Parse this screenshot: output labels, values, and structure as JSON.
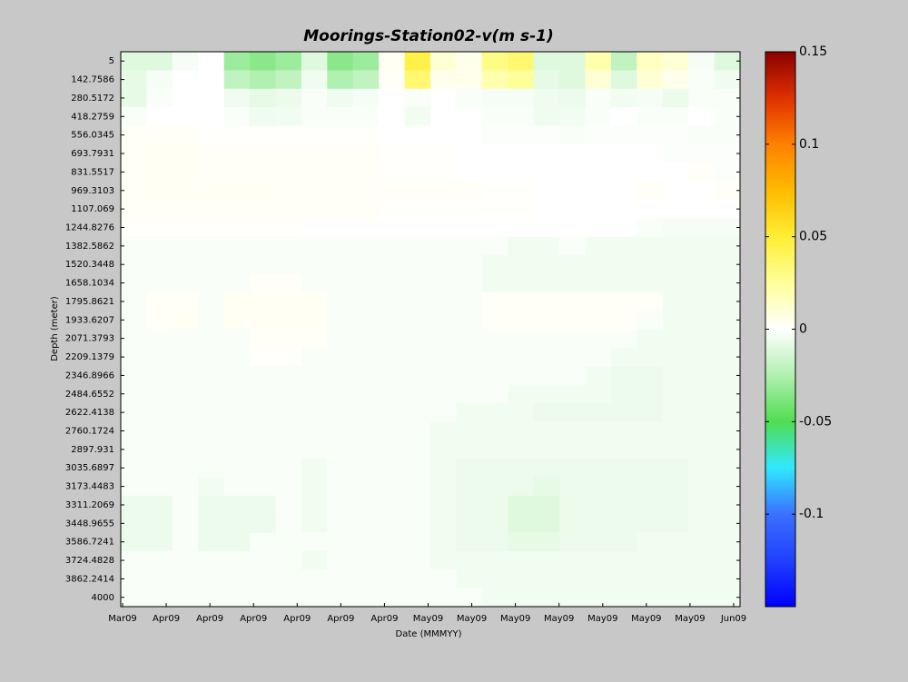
{
  "chart_data": {
    "type": "heatmap",
    "title": "Moorings-Station02-v(m s-1)",
    "x_label": "Date (MMMYY)",
    "y_label": "Depth (meter)",
    "xtick_labels": [
      "Mar09",
      "Apr09",
      "Apr09",
      "Apr09",
      "Apr09",
      "Apr09",
      "Apr09",
      "May09",
      "May09",
      "May09",
      "May09",
      "May09",
      "May09",
      "May09",
      "Jun09"
    ],
    "ylim": [
      -64,
      4069
    ],
    "y_inverted": true,
    "yticks": [
      5,
      142.7586,
      280.5172,
      418.2759,
      556.0345,
      693.7931,
      831.5517,
      969.3103,
      1107.069,
      1244.8276,
      1382.5862,
      1520.3448,
      1658.1034,
      1795.8621,
      1933.6207,
      2071.3793,
      2209.1379,
      2346.8966,
      2484.6552,
      2622.4138,
      2760.1724,
      2897.931,
      3035.6897,
      3173.4483,
      3311.2069,
      3448.9655,
      3586.7241,
      3724.4828,
      3862.2414,
      4000
    ],
    "clim": [
      -0.15,
      0.15
    ],
    "cticks": [
      0.15,
      0.1,
      0.05,
      0,
      -0.05,
      -0.1
    ],
    "colormap": [
      "#0000ff",
      "#2040ff",
      "#3a70ff",
      "#30e8ff",
      "#50dd50",
      "#b0f0b0",
      "#ffffff",
      "#ffff99",
      "#ffee33",
      "#ffbb00",
      "#ff8000",
      "#e03000",
      "#8b0000"
    ],
    "values": [
      [
        -0.01,
        -0.01,
        -0.003,
        0,
        -0.03,
        -0.035,
        -0.03,
        -0.01,
        -0.035,
        -0.03,
        0.003,
        0.045,
        0.01,
        0.005,
        0.03,
        0.035,
        -0.01,
        -0.01,
        0.02,
        -0.02,
        0.015,
        0.01,
        -0.003,
        -0.01
      ],
      [
        -0.008,
        -0.003,
        0,
        0,
        -0.02,
        -0.025,
        -0.02,
        -0.005,
        -0.025,
        -0.02,
        0.002,
        0.035,
        0.005,
        0.005,
        0.02,
        0.025,
        -0.008,
        -0.01,
        0.01,
        -0.01,
        0.01,
        0.005,
        -0.002,
        -0.005
      ],
      [
        -0.008,
        -0.002,
        0,
        0,
        -0.005,
        -0.008,
        -0.006,
        -0.002,
        -0.005,
        -0.003,
        0,
        -0.002,
        0,
        -0.002,
        -0.003,
        -0.003,
        -0.005,
        -0.006,
        -0.002,
        -0.004,
        -0.003,
        -0.006,
        -0.002,
        -0.002
      ],
      [
        -0.002,
        0,
        0,
        0,
        -0.002,
        -0.005,
        -0.004,
        -0.002,
        -0.002,
        -0.002,
        0,
        -0.004,
        0,
        0,
        -0.002,
        -0.002,
        -0.005,
        -0.004,
        -0.002,
        0,
        -0.002,
        -0.002,
        0,
        -0.002
      ],
      [
        0.002,
        0.002,
        0.002,
        0.001,
        0.001,
        0.001,
        0.001,
        0.001,
        0.001,
        0.001,
        0,
        0,
        0,
        0,
        -0.001,
        -0.001,
        -0.001,
        -0.002,
        -0.001,
        -0.001,
        -0.001,
        -0.001,
        -0.002,
        -0.002
      ],
      [
        0.002,
        0.003,
        0.003,
        0.002,
        0.002,
        0.002,
        0.002,
        0.002,
        0.002,
        0.002,
        0.001,
        0.001,
        0.001,
        0,
        0,
        0,
        0,
        0,
        0,
        0,
        0,
        -0.001,
        -0.001,
        -0.001
      ],
      [
        0.002,
        0.003,
        0.003,
        0.002,
        0.002,
        0.002,
        0.002,
        0.002,
        0.002,
        0.002,
        0.001,
        0.001,
        0.001,
        0,
        0,
        0,
        0,
        0,
        0,
        0,
        0,
        0,
        0.002,
        -0.001
      ],
      [
        0.002,
        0.003,
        0.003,
        0.003,
        0.003,
        0.003,
        0.002,
        0.002,
        0.002,
        0.002,
        0.002,
        0.002,
        0.002,
        0.002,
        0.001,
        0.001,
        0,
        0,
        0,
        0,
        0.002,
        0,
        0,
        0.002
      ],
      [
        0.002,
        0.002,
        0.002,
        0.002,
        0.002,
        0.002,
        0.002,
        0.002,
        0.002,
        0.002,
        0.001,
        0.001,
        0.001,
        0.001,
        0.001,
        0.001,
        0,
        0,
        0,
        0,
        0,
        0,
        0,
        0
      ],
      [
        0.001,
        0.001,
        0.001,
        0.001,
        0.001,
        0.001,
        0.001,
        0,
        0,
        0,
        0,
        0,
        0,
        0,
        0,
        0,
        0,
        0,
        0,
        0,
        -0.002,
        -0.003,
        -0.003,
        -0.003
      ],
      [
        -0.002,
        -0.002,
        -0.002,
        -0.002,
        -0.002,
        -0.002,
        -0.002,
        -0.002,
        -0.002,
        -0.002,
        -0.002,
        -0.002,
        -0.002,
        -0.002,
        -0.002,
        -0.004,
        -0.004,
        -0.002,
        -0.004,
        -0.004,
        -0.004,
        -0.004,
        -0.004,
        -0.004
      ],
      [
        -0.002,
        -0.002,
        -0.002,
        -0.002,
        -0.002,
        -0.002,
        -0.002,
        -0.002,
        -0.002,
        -0.002,
        -0.002,
        -0.002,
        -0.002,
        -0.002,
        -0.004,
        -0.004,
        -0.004,
        -0.004,
        -0.004,
        -0.004,
        -0.004,
        -0.004,
        -0.004,
        -0.004
      ],
      [
        -0.002,
        -0.002,
        -0.002,
        -0.002,
        -0.002,
        0.002,
        0.002,
        -0.002,
        -0.002,
        -0.002,
        -0.002,
        -0.002,
        -0.002,
        -0.002,
        -0.004,
        -0.004,
        -0.004,
        -0.004,
        -0.004,
        -0.004,
        -0.004,
        -0.004,
        -0.004,
        -0.004
      ],
      [
        -0.002,
        0.002,
        0.002,
        -0.002,
        0.003,
        0.003,
        0.003,
        0.003,
        -0.002,
        -0.002,
        -0.002,
        -0.002,
        -0.002,
        -0.002,
        0.002,
        0.002,
        0.002,
        0.002,
        0.002,
        0.002,
        0.002,
        -0.004,
        -0.004,
        -0.004
      ],
      [
        -0.002,
        0.002,
        0.003,
        -0.002,
        0.003,
        0.003,
        0.003,
        0.003,
        -0.002,
        -0.002,
        -0.002,
        -0.002,
        -0.002,
        -0.002,
        0.002,
        0.002,
        0.002,
        0.002,
        0.002,
        0.002,
        -0.002,
        -0.004,
        -0.004,
        -0.004
      ],
      [
        -0.002,
        -0.002,
        -0.002,
        -0.002,
        -0.002,
        0.002,
        0.002,
        0.002,
        -0.002,
        -0.002,
        -0.002,
        -0.002,
        -0.002,
        -0.002,
        -0.002,
        -0.002,
        -0.002,
        -0.002,
        -0.002,
        -0.002,
        -0.004,
        -0.004,
        -0.004,
        -0.004
      ],
      [
        -0.002,
        -0.002,
        -0.002,
        -0.002,
        -0.002,
        0.001,
        0.001,
        -0.002,
        -0.002,
        -0.002,
        -0.002,
        -0.002,
        -0.002,
        -0.002,
        -0.002,
        -0.002,
        -0.002,
        -0.002,
        -0.002,
        -0.004,
        -0.004,
        -0.004,
        -0.004,
        -0.004
      ],
      [
        -0.002,
        -0.002,
        -0.002,
        -0.002,
        -0.002,
        -0.002,
        -0.002,
        -0.002,
        -0.002,
        -0.002,
        -0.002,
        -0.002,
        -0.002,
        -0.002,
        -0.002,
        -0.002,
        -0.002,
        -0.002,
        -0.004,
        -0.006,
        -0.006,
        -0.004,
        -0.004,
        -0.004
      ],
      [
        -0.002,
        -0.002,
        -0.002,
        -0.002,
        -0.002,
        -0.002,
        -0.002,
        -0.002,
        -0.002,
        -0.002,
        -0.002,
        -0.002,
        -0.002,
        -0.002,
        -0.002,
        -0.004,
        -0.004,
        -0.004,
        -0.004,
        -0.006,
        -0.006,
        -0.004,
        -0.004,
        -0.004
      ],
      [
        -0.002,
        -0.002,
        -0.002,
        -0.002,
        -0.002,
        -0.002,
        -0.002,
        -0.002,
        -0.002,
        -0.002,
        -0.002,
        -0.002,
        -0.002,
        -0.004,
        -0.004,
        -0.004,
        -0.006,
        -0.006,
        -0.006,
        -0.006,
        -0.006,
        -0.004,
        -0.004,
        -0.004
      ],
      [
        -0.002,
        -0.002,
        -0.002,
        -0.002,
        -0.002,
        -0.002,
        -0.002,
        -0.002,
        -0.002,
        -0.002,
        -0.002,
        -0.002,
        -0.004,
        -0.004,
        -0.004,
        -0.004,
        -0.004,
        -0.004,
        -0.004,
        -0.004,
        -0.004,
        -0.004,
        -0.004,
        -0.004
      ],
      [
        -0.002,
        -0.002,
        -0.002,
        -0.002,
        -0.002,
        -0.002,
        -0.002,
        -0.002,
        -0.002,
        -0.002,
        -0.002,
        -0.002,
        -0.004,
        -0.004,
        -0.004,
        -0.004,
        -0.004,
        -0.004,
        -0.004,
        -0.004,
        -0.004,
        -0.004,
        -0.004,
        -0.004
      ],
      [
        -0.002,
        -0.002,
        -0.002,
        -0.002,
        -0.002,
        -0.002,
        -0.002,
        -0.004,
        -0.002,
        -0.002,
        -0.002,
        -0.002,
        -0.004,
        -0.006,
        -0.006,
        -0.006,
        -0.006,
        -0.006,
        -0.006,
        -0.006,
        -0.006,
        -0.006,
        -0.004,
        -0.004
      ],
      [
        -0.002,
        -0.002,
        -0.002,
        -0.004,
        -0.002,
        -0.002,
        -0.002,
        -0.004,
        -0.002,
        -0.002,
        -0.002,
        -0.002,
        -0.004,
        -0.006,
        -0.006,
        -0.006,
        -0.008,
        -0.006,
        -0.006,
        -0.006,
        -0.006,
        -0.006,
        -0.004,
        -0.004
      ],
      [
        -0.006,
        -0.006,
        -0.002,
        -0.006,
        -0.006,
        -0.006,
        -0.002,
        -0.004,
        -0.002,
        -0.002,
        -0.002,
        -0.002,
        -0.004,
        -0.006,
        -0.006,
        -0.01,
        -0.01,
        -0.006,
        -0.006,
        -0.006,
        -0.006,
        -0.006,
        -0.004,
        -0.004
      ],
      [
        -0.006,
        -0.006,
        -0.002,
        -0.006,
        -0.006,
        -0.006,
        -0.002,
        -0.004,
        -0.002,
        -0.002,
        -0.002,
        -0.002,
        -0.004,
        -0.006,
        -0.006,
        -0.01,
        -0.01,
        -0.006,
        -0.006,
        -0.006,
        -0.006,
        -0.006,
        -0.004,
        -0.004
      ],
      [
        -0.006,
        -0.006,
        -0.002,
        -0.006,
        -0.006,
        -0.002,
        -0.002,
        -0.002,
        -0.002,
        -0.002,
        -0.002,
        -0.002,
        -0.004,
        -0.006,
        -0.006,
        -0.008,
        -0.008,
        -0.006,
        -0.006,
        -0.006,
        -0.004,
        -0.004,
        -0.004,
        -0.004
      ],
      [
        -0.002,
        -0.002,
        -0.002,
        -0.002,
        -0.002,
        -0.002,
        -0.002,
        -0.004,
        -0.002,
        -0.002,
        -0.002,
        -0.002,
        -0.004,
        -0.004,
        -0.004,
        -0.004,
        -0.004,
        -0.004,
        -0.004,
        -0.004,
        -0.004,
        -0.004,
        -0.004,
        -0.004
      ],
      [
        -0.002,
        -0.002,
        -0.002,
        -0.002,
        -0.002,
        -0.002,
        -0.002,
        -0.002,
        -0.002,
        -0.002,
        -0.002,
        -0.002,
        -0.002,
        -0.004,
        -0.004,
        -0.004,
        -0.004,
        -0.004,
        -0.004,
        -0.004,
        -0.004,
        -0.004,
        -0.004,
        -0.004
      ],
      [
        -0.002,
        -0.002,
        -0.002,
        -0.002,
        -0.002,
        -0.002,
        -0.002,
        -0.002,
        -0.002,
        -0.002,
        -0.002,
        -0.002,
        -0.002,
        -0.002,
        -0.004,
        -0.004,
        -0.004,
        -0.004,
        -0.004,
        -0.004,
        -0.004,
        -0.004,
        -0.004,
        -0.004
      ]
    ]
  }
}
